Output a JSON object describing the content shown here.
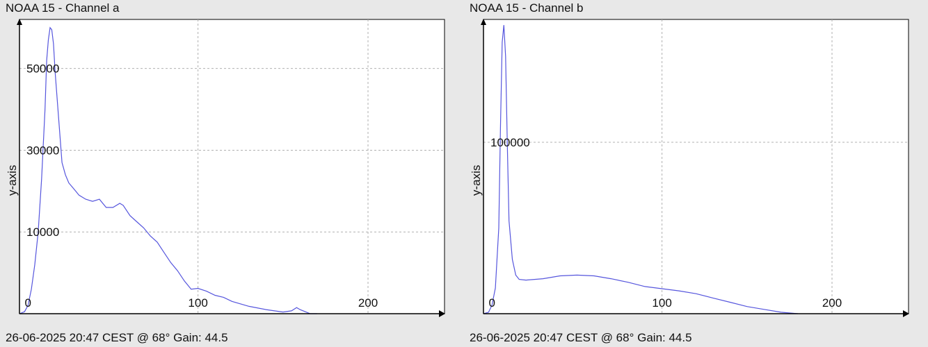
{
  "chart_data": [
    {
      "type": "line",
      "title": "NOAA 15 - Channel a",
      "ylabel": "y-axis",
      "footer": "26-06-2025 20:47 CEST @ 68° Gain: 44.5",
      "xlim": [
        -5,
        245
      ],
      "ylim": [
        -10000,
        62000
      ],
      "xticks": [
        0,
        100,
        200
      ],
      "xtick_labels": [
        "0",
        "100",
        "200"
      ],
      "yticks": [
        10000,
        30000,
        50000
      ],
      "ytick_labels": [
        "10000",
        "30000",
        "50000"
      ],
      "grid": true,
      "line_color": "#5555dd",
      "series": [
        {
          "x": [
            -5,
            -2,
            0,
            2,
            4,
            6,
            8,
            10,
            11,
            12,
            13,
            14,
            15,
            16,
            18,
            20,
            22,
            24,
            26,
            28,
            30,
            34,
            38,
            42,
            46,
            50,
            54,
            56,
            60,
            64,
            68,
            72,
            76,
            80,
            84,
            88,
            92,
            96,
            100,
            105,
            110,
            115,
            120,
            130,
            140,
            150,
            155,
            158,
            160,
            163,
            166,
            170
          ],
          "y": [
            -10000,
            -9500,
            -8000,
            -4000,
            2000,
            10000,
            23000,
            40000,
            52000,
            57000,
            60000,
            59500,
            56000,
            49000,
            38000,
            27000,
            24000,
            22000,
            21000,
            20000,
            19000,
            18000,
            17500,
            18000,
            16000,
            16000,
            17000,
            16500,
            14000,
            12500,
            11000,
            9000,
            7500,
            5000,
            2500,
            500,
            -2000,
            -4000,
            -3800,
            -4500,
            -5500,
            -6000,
            -7000,
            -8200,
            -9000,
            -9600,
            -9300,
            -8500,
            -9000,
            -9500,
            -10000,
            -10000
          ]
        }
      ]
    },
    {
      "type": "line",
      "title": "NOAA 15 - Channel b",
      "ylabel": "y-axis",
      "footer": "26-06-2025 20:47 CEST @ 68° Gain: 44.5",
      "xlim": [
        -5,
        245
      ],
      "ylim": [
        -20000,
        186000
      ],
      "xticks": [
        0,
        100,
        200
      ],
      "xtick_labels": [
        "0",
        "100",
        "200"
      ],
      "yticks": [
        100000
      ],
      "ytick_labels": [
        "100000"
      ],
      "grid": true,
      "line_color": "#5555dd",
      "series": [
        {
          "x": [
            -5,
            -2,
            0,
            2,
            4,
            5,
            6,
            7,
            8,
            9,
            10,
            12,
            14,
            16,
            20,
            30,
            40,
            50,
            60,
            70,
            80,
            90,
            100,
            110,
            120,
            130,
            140,
            150,
            160,
            170,
            180
          ],
          "y": [
            -20000,
            -19000,
            -14000,
            -2000,
            40000,
            110000,
            170000,
            182000,
            160000,
            100000,
            45000,
            18000,
            7000,
            4000,
            3500,
            4500,
            6500,
            7000,
            6500,
            4500,
            2000,
            -1000,
            -2500,
            -4000,
            -6000,
            -9000,
            -12000,
            -15000,
            -17000,
            -19000,
            -20000
          ]
        }
      ]
    }
  ]
}
